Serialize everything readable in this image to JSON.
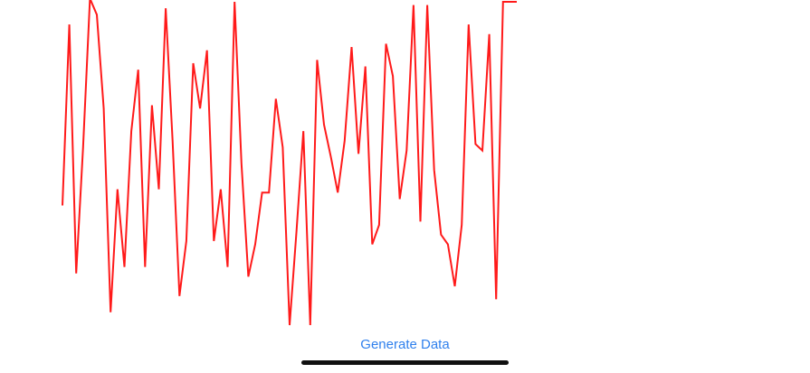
{
  "chart_data": {
    "type": "line",
    "title": "",
    "xlabel": "",
    "ylabel": "",
    "ylim": [
      0,
      100
    ],
    "line_color": "#ff1a1a",
    "x": [
      0,
      1,
      2,
      3,
      4,
      5,
      6,
      7,
      8,
      9,
      10,
      11,
      12,
      13,
      14,
      15,
      16,
      17,
      18,
      19,
      20,
      21,
      22,
      23,
      24,
      25,
      26,
      27,
      28,
      29,
      30,
      31,
      32,
      33,
      34,
      35,
      36,
      37,
      38,
      39,
      40,
      41,
      42,
      43,
      44,
      45,
      46,
      47,
      48,
      49,
      50,
      51,
      52,
      53,
      54,
      55,
      56,
      57,
      58,
      59,
      60,
      61,
      62,
      63,
      64,
      65,
      66
    ],
    "series": [
      {
        "values": [
          37,
          93,
          16,
          55,
          101,
          96,
          67,
          4,
          42,
          18,
          60,
          79,
          18,
          68,
          42,
          98,
          57,
          9,
          26,
          81,
          67,
          85,
          26,
          42,
          18,
          100,
          50,
          15,
          25,
          41,
          41,
          70,
          55,
          0,
          29,
          60,
          0,
          82,
          62,
          52,
          41,
          57,
          86,
          53,
          80,
          25,
          31,
          87,
          77,
          39,
          54,
          99,
          32,
          99,
          48,
          28,
          25,
          12,
          31,
          93,
          56,
          54,
          90,
          8,
          100,
          100,
          100
        ]
      }
    ]
  },
  "actions": {
    "generate_label": "Generate Data",
    "link_color": "#2f80ed"
  },
  "home_indicator_color": "#111111"
}
